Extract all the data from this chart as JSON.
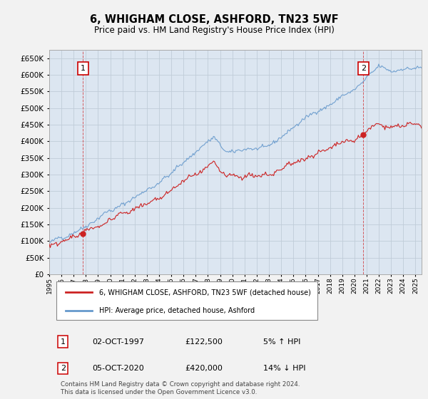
{
  "title": "6, WHIGHAM CLOSE, ASHFORD, TN23 5WF",
  "subtitle": "Price paid vs. HM Land Registry's House Price Index (HPI)",
  "background_color": "#e8eef5",
  "plot_bg_color": "#dce6f1",
  "grid_color": "#c0ccd8",
  "hpi_color": "#6699cc",
  "price_color": "#cc2222",
  "ylim": [
    0,
    675000
  ],
  "yticks": [
    0,
    50000,
    100000,
    150000,
    200000,
    250000,
    300000,
    350000,
    400000,
    450000,
    500000,
    550000,
    600000,
    650000
  ],
  "sale1_date": 1997.75,
  "sale1_price": 122500,
  "sale2_date": 2020.75,
  "sale2_price": 420000,
  "legend_line1": "6, WHIGHAM CLOSE, ASHFORD, TN23 5WF (detached house)",
  "legend_line2": "HPI: Average price, detached house, Ashford",
  "annotation1_label": "1",
  "annotation1_date": "02-OCT-1997",
  "annotation1_price": "£122,500",
  "annotation1_hpi": "5% ↑ HPI",
  "annotation2_label": "2",
  "annotation2_date": "05-OCT-2020",
  "annotation2_price": "£420,000",
  "annotation2_hpi": "14% ↓ HPI",
  "footer": "Contains HM Land Registry data © Crown copyright and database right 2024.\nThis data is licensed under the Open Government Licence v3.0."
}
